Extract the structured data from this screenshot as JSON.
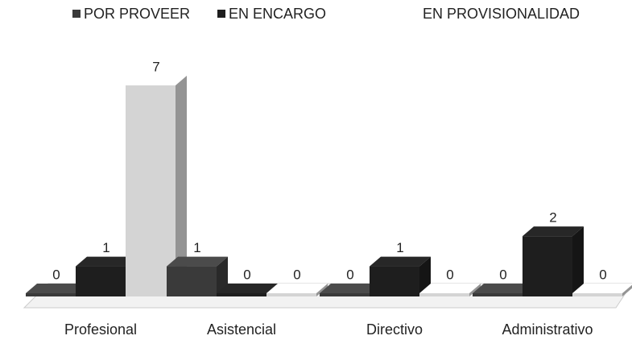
{
  "chart_data": {
    "type": "bar3d",
    "categories": [
      "Profesional",
      "Asistencial",
      "Directivo",
      "Administrativo"
    ],
    "series": [
      {
        "name": "POR PROVEER",
        "color": "#3a3a3a",
        "values": [
          0,
          1,
          0,
          0
        ]
      },
      {
        "name": "EN ENCARGO",
        "color": "#1e1e1e",
        "values": [
          1,
          0,
          1,
          2
        ]
      },
      {
        "name": "EN PROVISIONALIDAD",
        "color": "#d4d4d4",
        "values": [
          7,
          0,
          0,
          0
        ]
      }
    ]
  }
}
